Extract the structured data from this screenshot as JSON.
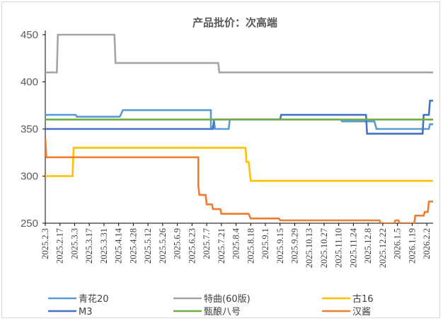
{
  "chart_data": {
    "type": "line",
    "title": "产品批价：次高端",
    "ylim": [
      250,
      450
    ],
    "yticks": [
      250,
      300,
      350,
      400,
      450
    ],
    "grid": false,
    "legend_position": "bottom",
    "x_range": [
      "2025-02-03",
      "2026-02-08"
    ],
    "xticks": [
      "2025.2.3",
      "2025.2.17",
      "2025.3.3",
      "2025.3.17",
      "2025.3.31",
      "2025.4.14",
      "2025.4.28",
      "2025.5.12",
      "2025.5.26",
      "2025.6.9",
      "2025.6.23",
      "2025.7.7",
      "2025.7.21",
      "2025.8.4",
      "2025.8.18",
      "2025.9.1",
      "2025.9.15",
      "2025.9.29",
      "2025.10.13",
      "2025.10.27",
      "2025.11.10",
      "2025.11.24",
      "2025.12.8",
      "2025.12.22",
      "2026.1.5",
      "2026.1.19",
      "2026.2.2"
    ],
    "series": [
      {
        "name": "青花20",
        "color": "#5b9bd5",
        "points": [
          [
            "2025-02-03",
            365
          ],
          [
            "2025-03-04",
            365
          ],
          [
            "2025-03-05",
            363
          ],
          [
            "2025-04-15",
            363
          ],
          [
            "2025-04-16",
            365
          ],
          [
            "2025-04-18",
            370
          ],
          [
            "2025-07-11",
            370
          ],
          [
            "2025-07-11",
            352
          ],
          [
            "2025-07-13",
            352
          ],
          [
            "2025-07-14",
            358
          ],
          [
            "2025-07-15",
            350
          ],
          [
            "2025-07-28",
            350
          ],
          [
            "2025-07-29",
            360
          ],
          [
            "2025-11-12",
            360
          ],
          [
            "2025-11-13",
            358
          ],
          [
            "2025-12-14",
            358
          ],
          [
            "2025-12-16",
            350
          ],
          [
            "2026-02-04",
            350
          ],
          [
            "2026-02-05",
            355
          ],
          [
            "2026-02-08",
            355
          ]
        ]
      },
      {
        "name": "特曲(60版)",
        "color": "#a5a5a5",
        "points": [
          [
            "2025-02-03",
            410
          ],
          [
            "2025-02-14",
            410
          ],
          [
            "2025-02-15",
            450
          ],
          [
            "2025-04-10",
            450
          ],
          [
            "2025-04-11",
            420
          ],
          [
            "2025-07-18",
            420
          ],
          [
            "2025-07-19",
            410
          ],
          [
            "2026-02-08",
            410
          ]
        ]
      },
      {
        "name": "古16",
        "color": "#ffc000",
        "points": [
          [
            "2025-02-03",
            300
          ],
          [
            "2025-03-01",
            300
          ],
          [
            "2025-03-02",
            330
          ],
          [
            "2025-08-13",
            330
          ],
          [
            "2025-08-14",
            315
          ],
          [
            "2025-08-16",
            315
          ],
          [
            "2025-08-17",
            305
          ],
          [
            "2025-08-18",
            295
          ],
          [
            "2026-02-08",
            295
          ]
        ]
      },
      {
        "name": "M3",
        "color": "#4472c4",
        "points": [
          [
            "2025-02-03",
            350
          ],
          [
            "2025-07-13",
            350
          ],
          [
            "2025-07-14",
            360
          ],
          [
            "2025-09-15",
            360
          ],
          [
            "2025-09-16",
            365
          ],
          [
            "2025-12-06",
            365
          ],
          [
            "2025-12-07",
            345
          ],
          [
            "2026-01-29",
            345
          ],
          [
            "2026-01-30",
            365
          ],
          [
            "2026-02-04",
            365
          ],
          [
            "2026-02-05",
            380
          ],
          [
            "2026-02-08",
            380
          ]
        ]
      },
      {
        "name": "甄酿八号",
        "color": "#70ad47",
        "points": [
          [
            "2025-02-03",
            360
          ],
          [
            "2026-02-08",
            360
          ]
        ]
      },
      {
        "name": "汉酱",
        "color": "#ed7d31",
        "points": [
          [
            "2025-02-03",
            340
          ],
          [
            "2025-02-04",
            320
          ],
          [
            "2025-06-29",
            320
          ],
          [
            "2025-06-29",
            290
          ],
          [
            "2025-06-30",
            280
          ],
          [
            "2025-07-06",
            280
          ],
          [
            "2025-07-07",
            270
          ],
          [
            "2025-07-12",
            270
          ],
          [
            "2025-07-13",
            265
          ],
          [
            "2025-07-20",
            265
          ],
          [
            "2025-07-21",
            260
          ],
          [
            "2025-08-16",
            260
          ],
          [
            "2025-08-18",
            255
          ],
          [
            "2025-09-14",
            255
          ],
          [
            "2025-09-15",
            253
          ],
          [
            "2025-12-19",
            253
          ],
          [
            "2025-12-20",
            250
          ],
          [
            "2026-01-02",
            250
          ],
          [
            "2026-01-03",
            253
          ],
          [
            "2026-01-06",
            253
          ],
          [
            "2026-01-07",
            250
          ],
          [
            "2026-01-21",
            250
          ],
          [
            "2026-01-22",
            258
          ],
          [
            "2026-01-30",
            258
          ],
          [
            "2026-01-31",
            262
          ],
          [
            "2026-02-03",
            262
          ],
          [
            "2026-02-04",
            273
          ],
          [
            "2026-02-08",
            273
          ]
        ]
      }
    ]
  }
}
